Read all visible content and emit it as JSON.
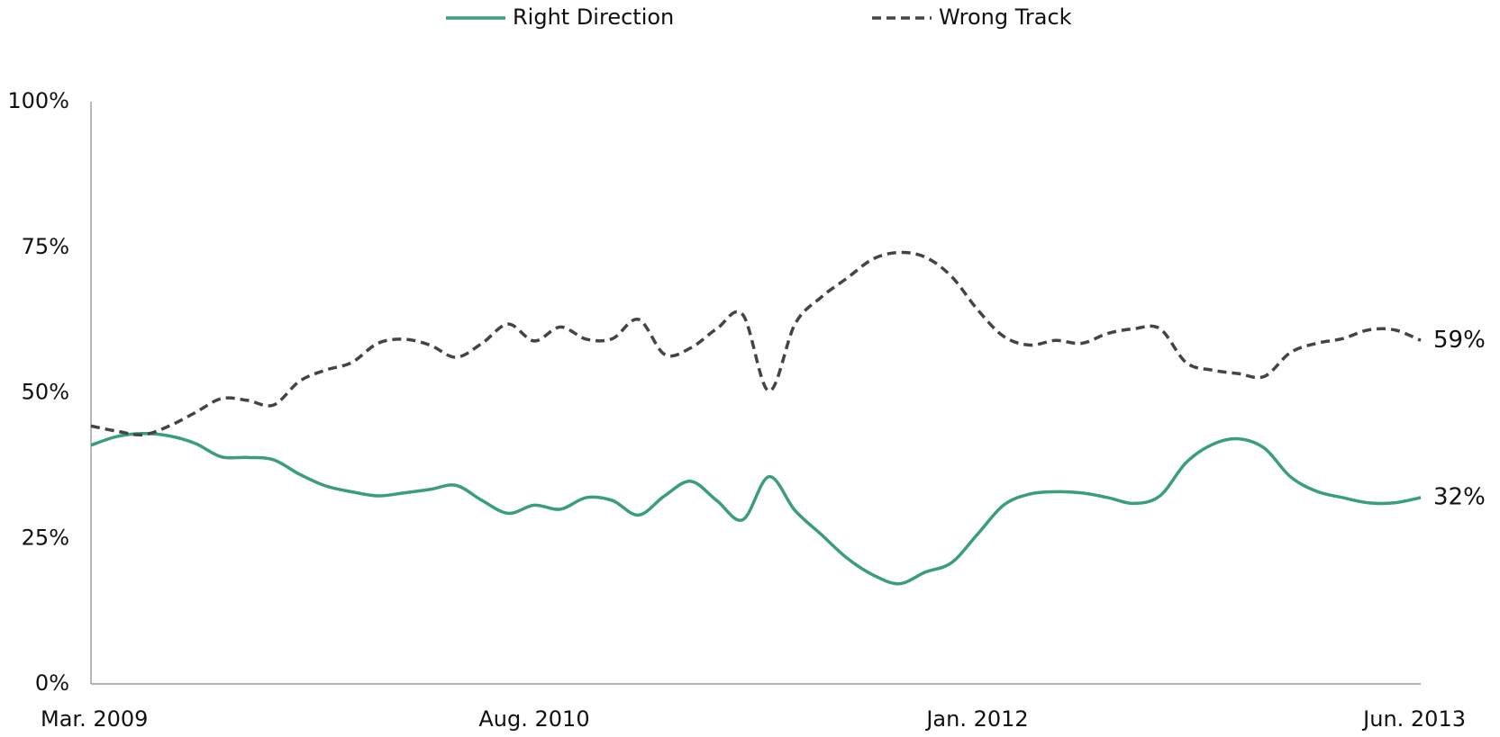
{
  "chart_data": {
    "type": "line",
    "categories": [
      "Mar. 2009",
      null,
      null,
      null,
      null,
      null,
      null,
      null,
      null,
      null,
      null,
      null,
      null,
      null,
      null,
      null,
      null,
      "Aug. 2010",
      null,
      null,
      null,
      null,
      null,
      null,
      null,
      null,
      null,
      null,
      null,
      null,
      null,
      null,
      null,
      null,
      "Jan. 2012",
      null,
      null,
      null,
      null,
      null,
      null,
      null,
      null,
      null,
      null,
      null,
      null,
      null,
      null,
      null,
      null,
      "Jun. 2013"
    ],
    "series": [
      {
        "name": "Right Direction",
        "color": "#3a9e78",
        "dash": false,
        "values": [
          41,
          42.5,
          43,
          42.6,
          41.3,
          39,
          38.9,
          38.5,
          36,
          34,
          33,
          32.3,
          32.8,
          33.4,
          34.1,
          31.5,
          29.3,
          30.7,
          30,
          32,
          31.5,
          29,
          32.3,
          34.8,
          31.5,
          28.2,
          35.6,
          29.8,
          25.7,
          21.6,
          18.7,
          17.2,
          19.2,
          20.8,
          25.7,
          30.7,
          32.6,
          33,
          32.8,
          32,
          31,
          32.3,
          38,
          41.1,
          42.1,
          40.5,
          35.6,
          33.1,
          32,
          31.1,
          31.1,
          32
        ],
        "value_labels": [
          null,
          null,
          null,
          null,
          null,
          null,
          null,
          null,
          null,
          null,
          null,
          null,
          null,
          null,
          null,
          null,
          null,
          null,
          null,
          null,
          null,
          null,
          null,
          null,
          null,
          null,
          null,
          null,
          null,
          null,
          null,
          null,
          null,
          null,
          null,
          null,
          null,
          null,
          null,
          null,
          null,
          null,
          null,
          null,
          null,
          null,
          null,
          null,
          null,
          null,
          null,
          "32%"
        ]
      },
      {
        "name": "Wrong Track",
        "color": "#444444",
        "dash": true,
        "values": [
          44.3,
          43.4,
          42.8,
          44.3,
          46.6,
          49,
          48.7,
          47.9,
          52,
          53.9,
          55.2,
          58.5,
          59.2,
          58.2,
          56.1,
          58.5,
          61.8,
          58.9,
          61.3,
          59.2,
          59.3,
          62.6,
          56.6,
          57.7,
          61,
          63.4,
          50.3,
          61.8,
          66.4,
          69.7,
          73,
          74.1,
          73.3,
          70,
          64.3,
          59.7,
          58.2,
          59,
          58.5,
          60.2,
          61,
          61,
          55.2,
          53.9,
          53.3,
          52.8,
          56.9,
          58.5,
          59.3,
          60.8,
          60.8,
          59
        ],
        "value_labels": [
          null,
          null,
          null,
          null,
          null,
          null,
          null,
          null,
          null,
          null,
          null,
          null,
          null,
          null,
          null,
          null,
          null,
          null,
          null,
          null,
          null,
          null,
          null,
          null,
          null,
          null,
          null,
          null,
          null,
          null,
          null,
          null,
          null,
          null,
          null,
          null,
          null,
          null,
          null,
          null,
          null,
          null,
          null,
          null,
          null,
          null,
          null,
          null,
          null,
          null,
          null,
          "59%"
        ]
      }
    ],
    "ylim": [
      0,
      100
    ],
    "yticks": [
      {
        "value": 0,
        "label": "0%"
      },
      {
        "value": 25,
        "label": "25%"
      },
      {
        "value": 50,
        "label": "50%"
      },
      {
        "value": 75,
        "label": "75%"
      },
      {
        "value": 100,
        "label": "100%"
      }
    ],
    "grid": false,
    "legend": "top"
  }
}
